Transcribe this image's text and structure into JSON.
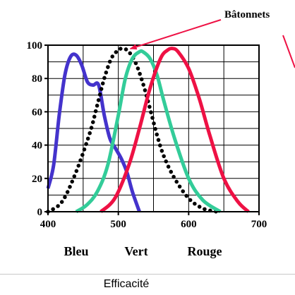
{
  "caption": "Efficacité",
  "chart_data": {
    "type": "line",
    "title": "",
    "xlabel": "",
    "ylabel": "",
    "xlim": [
      400,
      700
    ],
    "ylim": [
      0,
      100
    ],
    "x_ticks": [
      400,
      500,
      600,
      700
    ],
    "y_ticks": [
      0,
      20,
      40,
      60,
      80,
      100
    ],
    "grid": true,
    "category_labels": [
      "Bleu",
      "Vert",
      "Rouge"
    ],
    "annotation": {
      "text": "Bâtonnets",
      "points_to": {
        "x": 507,
        "y": 97
      }
    },
    "series": [
      {
        "color": "#4433cc",
        "style": "solid",
        "x": [
          400,
          408,
          416,
          424,
          432,
          440,
          448,
          456,
          464,
          472,
          480,
          488,
          496,
          504,
          512,
          520,
          530
        ],
        "y": [
          14,
          28,
          58,
          82,
          93,
          94,
          88,
          78,
          76,
          76,
          58,
          44,
          38,
          32,
          24,
          12,
          0
        ]
      },
      {
        "color": "#000000",
        "style": "dotted",
        "x": [
          400,
          420,
          440,
          460,
          470,
          480,
          490,
          500,
          507,
          515,
          525,
          535,
          545,
          555,
          565,
          580,
          600,
          620,
          640
        ],
        "y": [
          0,
          6,
          24,
          48,
          64,
          80,
          92,
          97,
          98,
          96,
          89,
          77,
          62,
          46,
          33,
          20,
          8,
          2,
          0
        ]
      },
      {
        "color": "#33cc99",
        "style": "solid",
        "x": [
          440,
          455,
          470,
          485,
          500,
          510,
          520,
          530,
          535,
          545,
          555,
          565,
          580,
          600,
          620,
          645
        ],
        "y": [
          0,
          4,
          12,
          28,
          58,
          80,
          92,
          96,
          96,
          92,
          82,
          66,
          44,
          20,
          7,
          0
        ]
      },
      {
        "color": "#ee1144",
        "style": "solid",
        "x": [
          475,
          495,
          515,
          530,
          545,
          560,
          570,
          577,
          585,
          600,
          615,
          630,
          650,
          670,
          685
        ],
        "y": [
          0,
          8,
          28,
          50,
          74,
          92,
          97,
          98,
          96,
          86,
          68,
          46,
          20,
          6,
          0
        ]
      }
    ]
  }
}
